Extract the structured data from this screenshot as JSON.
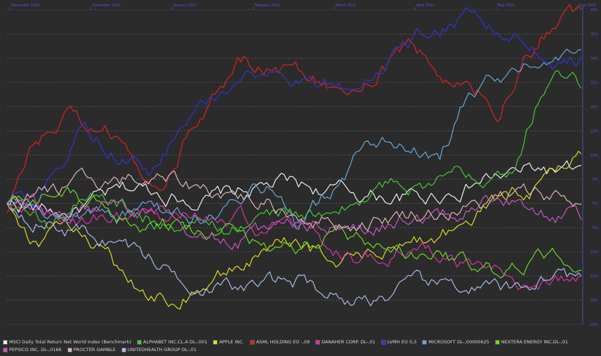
{
  "chart_data": {
    "type": "line",
    "title": "",
    "xlabel": "",
    "ylabel": "",
    "x_ticks": [
      "December 2020",
      "December 2020",
      "January 2021",
      "February 2021",
      "March 2021",
      "April 2021",
      "May 2021",
      "June 2021"
    ],
    "y_ticks": [
      "40%",
      "35%",
      "30%",
      "25%",
      "20%",
      "15%",
      "10%",
      "5%",
      "0%",
      "-5%",
      "-10%",
      "-15%",
      "-20%",
      "-25%"
    ],
    "ylim": [
      -25,
      40
    ],
    "n_points": 200,
    "grid": "horizontal dashed",
    "legend_position": "bottom",
    "series": [
      {
        "name": "MSCI Daily Total Return Net World Index (Benchmark)",
        "color": "#f0f0f0",
        "anchors": [
          [
            0,
            0
          ],
          [
            20,
            -2
          ],
          [
            45,
            3
          ],
          [
            70,
            1
          ],
          [
            95,
            4
          ],
          [
            120,
            2
          ],
          [
            145,
            1
          ],
          [
            165,
            5
          ],
          [
            185,
            7
          ],
          [
            199,
            6
          ]
        ]
      },
      {
        "name": "ALPHABET INC.CL.A DL-,001",
        "color": "#44cc33",
        "anchors": [
          [
            0,
            0
          ],
          [
            15,
            -4
          ],
          [
            30,
            2
          ],
          [
            50,
            -3
          ],
          [
            75,
            -5
          ],
          [
            95,
            -2
          ],
          [
            115,
            -3
          ],
          [
            130,
            3
          ],
          [
            150,
            5
          ],
          [
            175,
            9
          ],
          [
            188,
            28
          ],
          [
            199,
            25
          ]
        ]
      },
      {
        "name": "APPLE INC.",
        "color": "#dddd22",
        "anchors": [
          [
            0,
            0
          ],
          [
            10,
            -8
          ],
          [
            25,
            -5
          ],
          [
            45,
            -18
          ],
          [
            55,
            -20
          ],
          [
            75,
            -15
          ],
          [
            95,
            -8
          ],
          [
            115,
            -12
          ],
          [
            135,
            -10
          ],
          [
            155,
            -5
          ],
          [
            175,
            2
          ],
          [
            190,
            5
          ],
          [
            199,
            10
          ]
        ]
      },
      {
        "name": "ASML HOLDING    EO -,09",
        "color": "#dd2222",
        "anchors": [
          [
            0,
            -2
          ],
          [
            8,
            12
          ],
          [
            20,
            18
          ],
          [
            35,
            15
          ],
          [
            45,
            6
          ],
          [
            55,
            5
          ],
          [
            65,
            18
          ],
          [
            80,
            30
          ],
          [
            100,
            27
          ],
          [
            120,
            25
          ],
          [
            140,
            32
          ],
          [
            155,
            25
          ],
          [
            170,
            20
          ],
          [
            185,
            35
          ],
          [
            199,
            39
          ]
        ]
      },
      {
        "name": "DANAHER CORP.       DL-,01",
        "color": "#dd33aa",
        "anchors": [
          [
            0,
            0
          ],
          [
            20,
            -2
          ],
          [
            40,
            -4
          ],
          [
            60,
            -2
          ],
          [
            80,
            -3
          ],
          [
            100,
            -6
          ],
          [
            120,
            -12
          ],
          [
            140,
            -10
          ],
          [
            160,
            -14
          ],
          [
            180,
            -17
          ],
          [
            199,
            -14
          ]
        ]
      },
      {
        "name": "LVMH                     EO 0,3",
        "color": "#3333dd",
        "anchors": [
          [
            0,
            0
          ],
          [
            10,
            -2
          ],
          [
            25,
            14
          ],
          [
            40,
            10
          ],
          [
            50,
            6
          ],
          [
            60,
            15
          ],
          [
            80,
            27
          ],
          [
            100,
            26
          ],
          [
            115,
            23
          ],
          [
            130,
            30
          ],
          [
            145,
            36
          ],
          [
            160,
            38
          ],
          [
            175,
            35
          ],
          [
            190,
            28
          ],
          [
            199,
            30
          ]
        ]
      },
      {
        "name": "MICROSOFT      DL-,00000625",
        "color": "#66aadd",
        "anchors": [
          [
            0,
            0
          ],
          [
            20,
            -3
          ],
          [
            45,
            -2
          ],
          [
            70,
            -3
          ],
          [
            90,
            3
          ],
          [
            100,
            -5
          ],
          [
            115,
            4
          ],
          [
            125,
            12
          ],
          [
            140,
            13
          ],
          [
            150,
            10
          ],
          [
            158,
            20
          ],
          [
            170,
            25
          ],
          [
            185,
            32
          ],
          [
            199,
            33
          ]
        ]
      },
      {
        "name": "NEXTERA ENERGY INC.DL-,01",
        "color": "#66dd22",
        "anchors": [
          [
            0,
            0
          ],
          [
            20,
            2
          ],
          [
            40,
            -3
          ],
          [
            60,
            -5
          ],
          [
            80,
            -7
          ],
          [
            100,
            -10
          ],
          [
            115,
            -6
          ],
          [
            130,
            -10
          ],
          [
            150,
            -12
          ],
          [
            170,
            -15
          ],
          [
            185,
            -12
          ],
          [
            199,
            -11
          ]
        ]
      },
      {
        "name": "PEPSICO INC.          DL-,0166",
        "color": "#cc55cc",
        "anchors": [
          [
            0,
            0
          ],
          [
            20,
            -3
          ],
          [
            40,
            0
          ],
          [
            60,
            -5
          ],
          [
            80,
            -8
          ],
          [
            100,
            -4
          ],
          [
            120,
            -6
          ],
          [
            140,
            -3
          ],
          [
            160,
            -1
          ],
          [
            175,
            1
          ],
          [
            190,
            -2
          ],
          [
            199,
            -3
          ]
        ]
      },
      {
        "name": "PROCTER GAMBLE",
        "color": "#e0b8b8",
        "anchors": [
          [
            0,
            0
          ],
          [
            20,
            3
          ],
          [
            40,
            5
          ],
          [
            60,
            4
          ],
          [
            80,
            2
          ],
          [
            100,
            -2
          ],
          [
            120,
            -4
          ],
          [
            140,
            -2
          ],
          [
            160,
            -1
          ],
          [
            175,
            1
          ],
          [
            190,
            2
          ],
          [
            199,
            0
          ]
        ]
      },
      {
        "name": "UNITEDHEALTH GROUP DL-,01",
        "color": "#aabbee",
        "anchors": [
          [
            0,
            0
          ],
          [
            20,
            -5
          ],
          [
            40,
            -8
          ],
          [
            60,
            -15
          ],
          [
            80,
            -18
          ],
          [
            100,
            -16
          ],
          [
            120,
            -20
          ],
          [
            140,
            -18
          ],
          [
            160,
            -17
          ],
          [
            175,
            -19
          ],
          [
            190,
            -14
          ],
          [
            199,
            -16
          ]
        ]
      }
    ]
  }
}
